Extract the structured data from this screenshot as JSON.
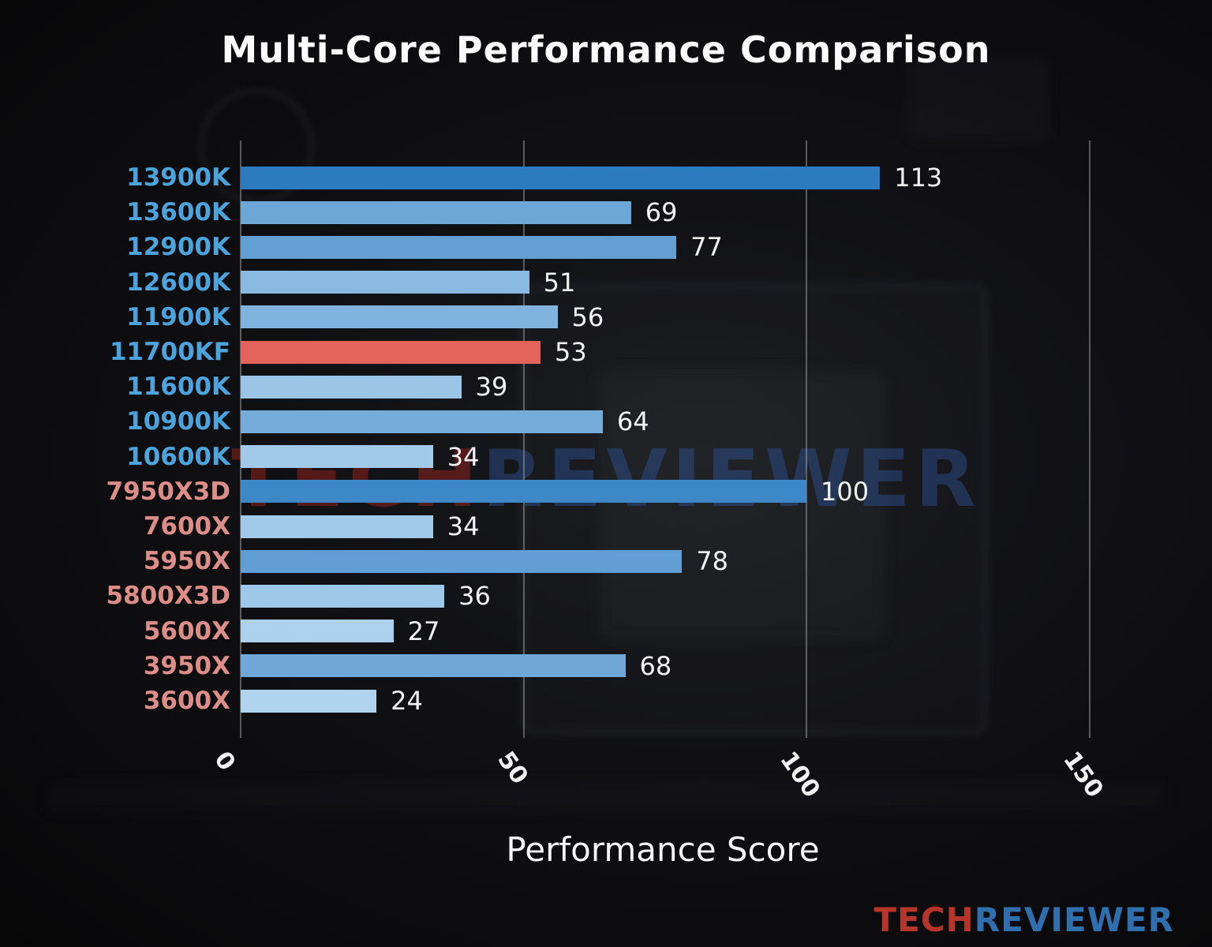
{
  "watermark": {
    "tech": "TECH",
    "reviewer": "REVIEWER"
  },
  "logo": {
    "tech": "TECH",
    "reviewer": "REVIEWER",
    "tech_color": "#b5352a",
    "reviewer_color": "#2f6fae"
  },
  "chart_data": {
    "type": "bar",
    "orientation": "horizontal",
    "title": "Multi-Core Performance Comparison",
    "xlabel": "Performance Score",
    "xlim": [
      0,
      150
    ],
    "xticks": [
      0,
      50,
      100,
      150
    ],
    "grid": true,
    "legend": false,
    "grid_color": "#9b9b9b",
    "value_label_color": "#f2f2f2",
    "categories": [
      "13900K",
      "13600K",
      "12900K",
      "12600K",
      "11900K",
      "11700KF",
      "11600K",
      "10900K",
      "10600K",
      "7950X3D",
      "7600X",
      "5950X",
      "5800X3D",
      "5600X",
      "3950X",
      "3600X"
    ],
    "values": [
      113,
      69,
      77,
      51,
      56,
      53,
      39,
      64,
      34,
      100,
      34,
      78,
      36,
      27,
      68,
      24
    ],
    "bar_colors": [
      "#2c7bc1",
      "#6da7d7",
      "#62a0d3",
      "#88b9e0",
      "#80b4de",
      "#e4635a",
      "#9ac5e6",
      "#75acda",
      "#a1cae9",
      "#3f88c8",
      "#a1cae9",
      "#609ed3",
      "#9ec8e8",
      "#acd1ec",
      "#6fa8d8",
      "#b0d4ee"
    ],
    "label_colors": [
      "#4da3dc",
      "#4da3dc",
      "#4da3dc",
      "#4da3dc",
      "#4da3dc",
      "#4da3dc",
      "#4da3dc",
      "#4da3dc",
      "#4da3dc",
      "#dd8e88",
      "#dd8e88",
      "#dd8e88",
      "#dd8e88",
      "#dd8e88",
      "#dd8e88",
      "#dd8e88"
    ],
    "highlight_index": 5,
    "highlight_color": "#e4635a"
  }
}
